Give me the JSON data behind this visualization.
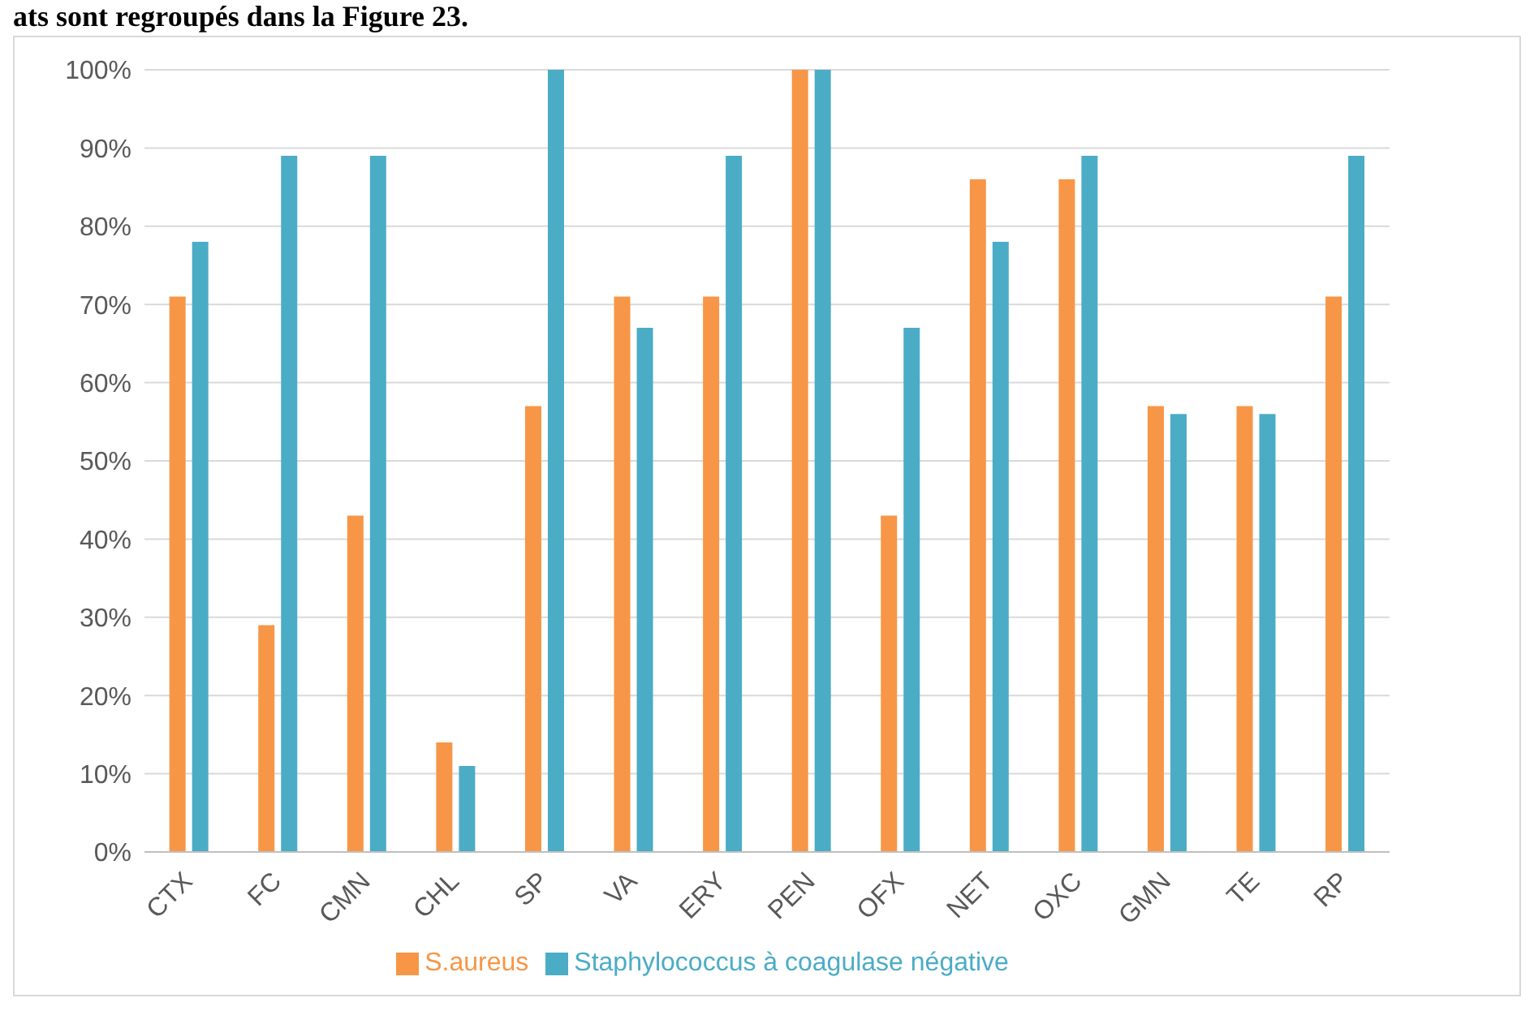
{
  "chart_data": {
    "type": "bar",
    "annotations": [
      "ats sont regroupés dans la Figure 23."
    ],
    "categories": [
      "CTX",
      "FC",
      "CMN",
      "CHL",
      "SP",
      "VA",
      "ERY",
      "PEN",
      "OFX",
      "NET",
      "OXC",
      "GMN",
      "TE",
      "RP"
    ],
    "series": [
      {
        "name": "S.aureus",
        "color": "#f79646",
        "values": [
          71,
          29,
          43,
          14,
          57,
          71,
          71,
          100,
          43,
          86,
          86,
          57,
          57,
          71
        ]
      },
      {
        "name": "Staphylococcus à coagulase négative",
        "color": "#4bacc6",
        "values": [
          78,
          89,
          89,
          11,
          100,
          67,
          89,
          100,
          67,
          78,
          89,
          56,
          56,
          89
        ]
      }
    ],
    "ylim": [
      0,
      100
    ],
    "yticks": [
      {
        "value": 0,
        "label": "0%"
      },
      {
        "value": 10,
        "label": "10%"
      },
      {
        "value": 20,
        "label": "20%"
      },
      {
        "value": 30,
        "label": "30%"
      },
      {
        "value": 40,
        "label": "40%"
      },
      {
        "value": 50,
        "label": "50%"
      },
      {
        "value": 60,
        "label": "60%"
      },
      {
        "value": 70,
        "label": "70%"
      },
      {
        "value": 80,
        "label": "80%"
      },
      {
        "value": 90,
        "label": "90%"
      },
      {
        "value": 100,
        "label": "100%"
      }
    ],
    "grid": "y",
    "legend": "bottom"
  }
}
